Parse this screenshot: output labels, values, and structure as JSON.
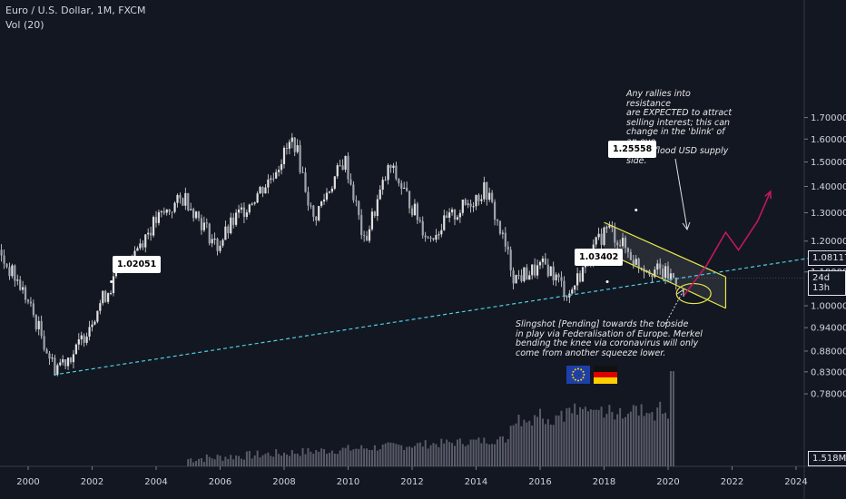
{
  "header": {
    "symbol": "Euro / U.S. Dollar, 1M, FXCM",
    "volume_label": "Vol (20)"
  },
  "colors": {
    "background": "#131722",
    "candle": "#e0e0e0",
    "volume": "#787b86",
    "trendline": "#4dd0e1",
    "channel": "#e8e84a",
    "projection": "#c2185b",
    "ellipse": "#e8e84a"
  },
  "chart_data": {
    "type": "candlestick",
    "title": "Euro / U.S. Dollar, 1M, FXCM",
    "x_ticks": [
      "2000",
      "2002",
      "2004",
      "2006",
      "2008",
      "2010",
      "2012",
      "2014",
      "2016",
      "2018",
      "2020",
      "2022",
      "2024"
    ],
    "y_ticks": [
      "1.70000",
      "1.60000",
      "1.50000",
      "1.40000",
      "1.30000",
      "1.20000",
      "1.10000",
      "1.00000",
      "0.94000",
      "0.88000",
      "0.83000",
      "0.78000"
    ],
    "y_scale": "log",
    "last_price": "1.08117",
    "countdown": "24d 13h",
    "volume_last": "1.518M",
    "price_path": [
      {
        "x": 1999.0,
        "y": 1.17
      },
      {
        "x": 1999.8,
        "y": 1.05
      },
      {
        "x": 2000.8,
        "y": 0.84
      },
      {
        "x": 2001.5,
        "y": 0.88
      },
      {
        "x": 2002.2,
        "y": 1.0
      },
      {
        "x": 2003.0,
        "y": 1.12
      },
      {
        "x": 2004.0,
        "y": 1.27
      },
      {
        "x": 2004.9,
        "y": 1.36
      },
      {
        "x": 2005.9,
        "y": 1.18
      },
      {
        "x": 2006.5,
        "y": 1.28
      },
      {
        "x": 2007.5,
        "y": 1.42
      },
      {
        "x": 2008.3,
        "y": 1.6
      },
      {
        "x": 2008.9,
        "y": 1.27
      },
      {
        "x": 2009.9,
        "y": 1.51
      },
      {
        "x": 2010.5,
        "y": 1.19
      },
      {
        "x": 2011.3,
        "y": 1.48
      },
      {
        "x": 2012.5,
        "y": 1.21
      },
      {
        "x": 2014.3,
        "y": 1.39
      },
      {
        "x": 2015.2,
        "y": 1.08
      },
      {
        "x": 2016.2,
        "y": 1.12
      },
      {
        "x": 2016.9,
        "y": 1.03
      },
      {
        "x": 2018.1,
        "y": 1.25
      },
      {
        "x": 2019.0,
        "y": 1.13
      },
      {
        "x": 2020.2,
        "y": 1.08
      }
    ],
    "price_labels": [
      {
        "text": "1.02051",
        "x": 2002.6,
        "y": 1.07
      },
      {
        "text": "1.25558",
        "x": 2019.0,
        "y": 1.31
      },
      {
        "text": "1.03402",
        "x": 2018.1,
        "y": 1.07
      }
    ],
    "trendline": [
      {
        "x": 2000.8,
        "y": 0.823
      },
      {
        "x": 2024.5,
        "y": 1.145
      }
    ],
    "channel_upper": [
      {
        "x": 2018.0,
        "y": 1.265
      },
      {
        "x": 2021.8,
        "y": 1.085
      }
    ],
    "channel_lower": [
      {
        "x": 2018.0,
        "y": 1.165
      },
      {
        "x": 2021.8,
        "y": 0.993
      }
    ],
    "projection": [
      {
        "x": 2020.5,
        "y": 1.03
      },
      {
        "x": 2021.2,
        "y": 1.12
      },
      {
        "x": 2021.8,
        "y": 1.23
      },
      {
        "x": 2022.2,
        "y": 1.17
      },
      {
        "x": 2022.8,
        "y": 1.27
      },
      {
        "x": 2023.2,
        "y": 1.38
      }
    ]
  },
  "annotations": {
    "top_note": "Any rallies into resistance\nare EXPECTED to attract\nselling interest; this can\nchange in the 'blink' of an eye\nif FED flood USD supply side.",
    "bottom_note": "Slingshot [Pending] towards the topside\nin play via Federalisation of Europe. Merkel\nbending the knee via coronavirus will only\ncome from another squeeze lower."
  },
  "icons": {
    "eu_flag": "eu-flag-icon",
    "de_flag": "germany-flag-icon"
  }
}
